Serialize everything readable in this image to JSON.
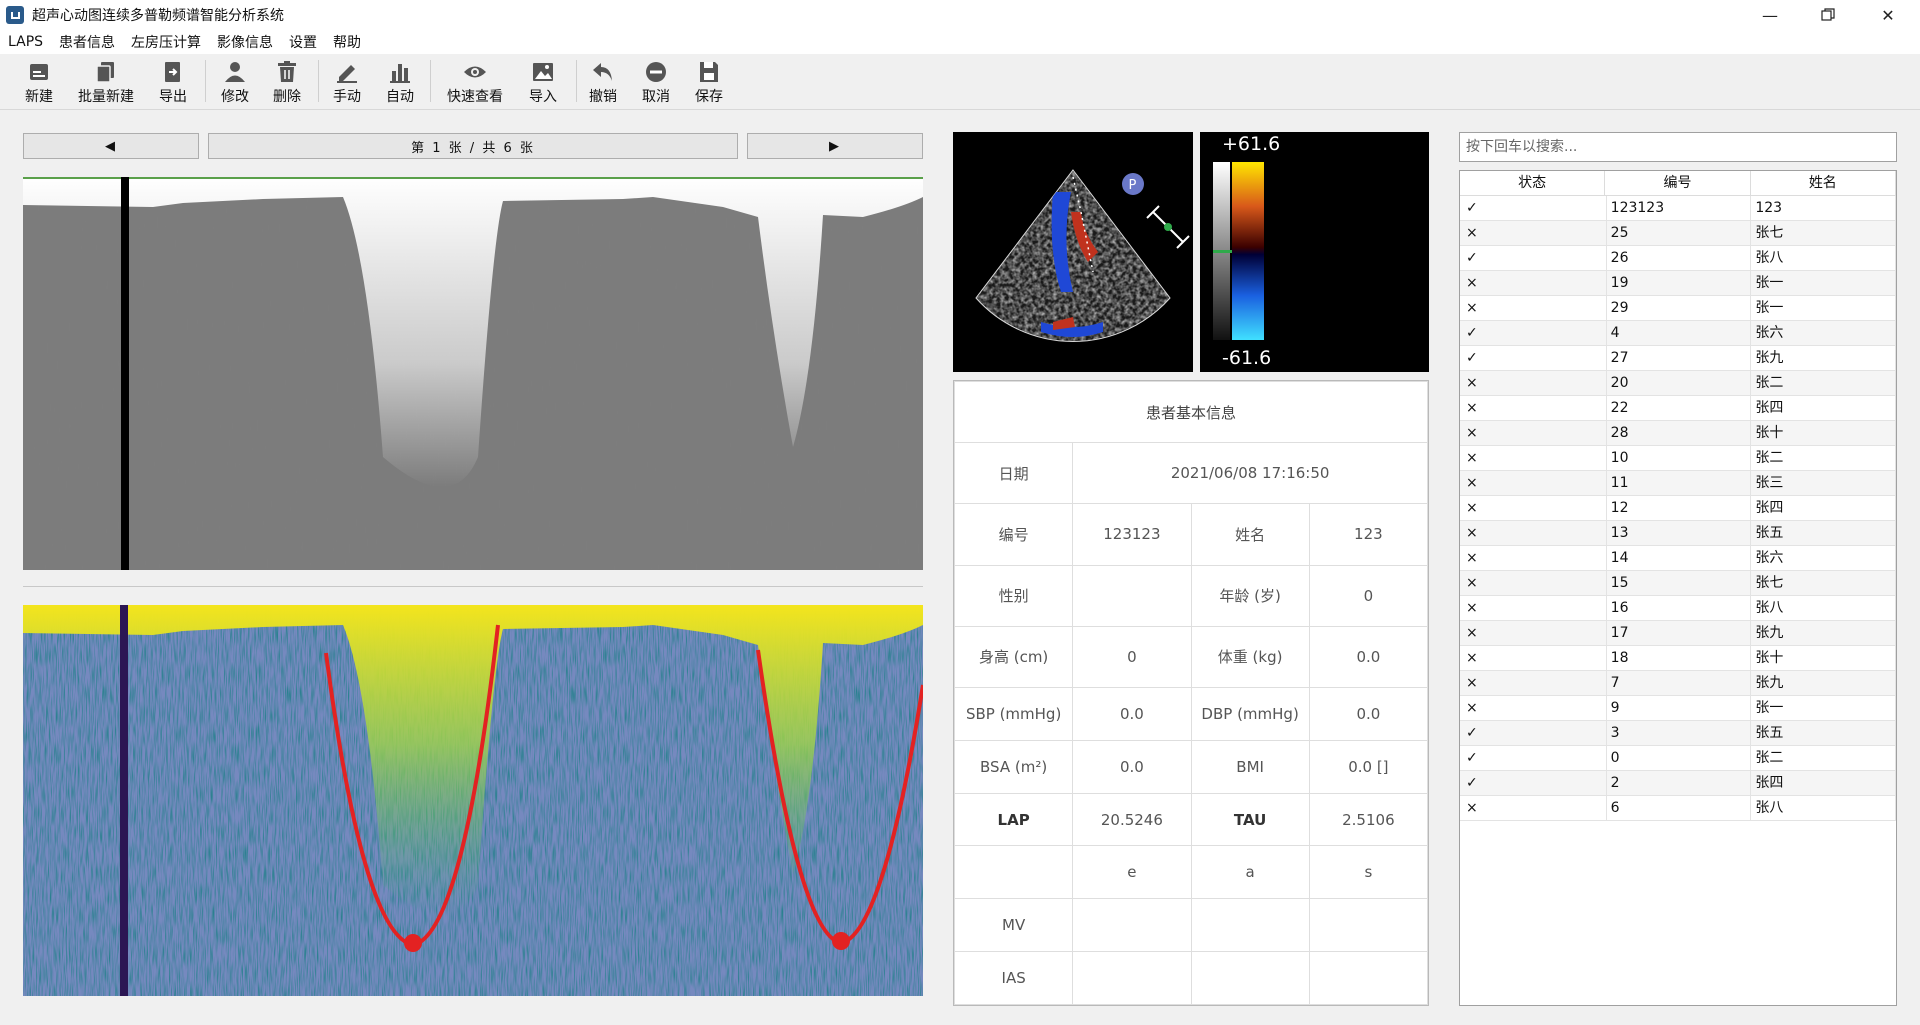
{
  "window": {
    "title": "超声心动图连续多普勒频谱智能分析系统"
  },
  "menu": [
    "LAPS",
    "患者信息",
    "左房压计算",
    "影像信息",
    "设置",
    "帮助"
  ],
  "toolbar": {
    "new": "新建",
    "batch_new": "批量新建",
    "export": "导出",
    "edit": "修改",
    "delete": "删除",
    "manual": "手动",
    "auto": "自动",
    "quick_view": "快速查看",
    "import": "导入",
    "undo": "撤销",
    "cancel": "取消",
    "save": "保存"
  },
  "nav": {
    "page_label": "第 1 张 / 共 6 张",
    "prev": "◀",
    "next": "▶"
  },
  "color_scale": {
    "max": "+61.6",
    "min": "-61.6"
  },
  "info": {
    "header": "患者基本信息",
    "date_label": "日期",
    "date_value": "2021/06/08 17:16:50",
    "id_label": "编号",
    "id_value": "123123",
    "name_label": "姓名",
    "name_value": "123",
    "sex_label": "性别",
    "sex_value": "",
    "age_label": "年龄 (岁)",
    "age_value": "0",
    "height_label": "身高 (cm)",
    "height_value": "0",
    "weight_label": "体重 (kg)",
    "weight_value": "0.0",
    "sbp_label": "SBP (mmHg)",
    "sbp_value": "0.0",
    "dbp_label": "DBP (mmHg)",
    "dbp_value": "0.0",
    "bsa_label": "BSA (m²)",
    "bsa_value": "0.0",
    "bmi_label": "BMI",
    "bmi_value": "0.0 []",
    "lap_label": "LAP",
    "lap_value": "20.5246",
    "tau_label": "TAU",
    "tau_value": "2.5106",
    "col_e": "e",
    "col_a": "a",
    "col_s": "s",
    "mv_label": "MV",
    "ias_label": "IAS"
  },
  "search": {
    "placeholder": "按下回车以搜索..."
  },
  "list": {
    "headers": [
      "状态",
      "编号",
      "姓名"
    ],
    "rows": [
      {
        "status": "✓",
        "id": "123123",
        "name": "123"
      },
      {
        "status": "×",
        "id": "25",
        "name": "张七"
      },
      {
        "status": "✓",
        "id": "26",
        "name": "张八"
      },
      {
        "status": "×",
        "id": "19",
        "name": "张一"
      },
      {
        "status": "×",
        "id": "29",
        "name": "张一"
      },
      {
        "status": "✓",
        "id": "4",
        "name": "张六"
      },
      {
        "status": "✓",
        "id": "27",
        "name": "张九"
      },
      {
        "status": "×",
        "id": "20",
        "name": "张二"
      },
      {
        "status": "×",
        "id": "22",
        "name": "张四"
      },
      {
        "status": "×",
        "id": "28",
        "name": "张十"
      },
      {
        "status": "×",
        "id": "10",
        "name": "张二"
      },
      {
        "status": "×",
        "id": "11",
        "name": "张三"
      },
      {
        "status": "×",
        "id": "12",
        "name": "张四"
      },
      {
        "status": "×",
        "id": "13",
        "name": "张五"
      },
      {
        "status": "×",
        "id": "14",
        "name": "张六"
      },
      {
        "status": "×",
        "id": "15",
        "name": "张七"
      },
      {
        "status": "×",
        "id": "16",
        "name": "张八"
      },
      {
        "status": "×",
        "id": "17",
        "name": "张九"
      },
      {
        "status": "×",
        "id": "18",
        "name": "张十"
      },
      {
        "status": "×",
        "id": "7",
        "name": "张九"
      },
      {
        "status": "×",
        "id": "9",
        "name": "张一"
      },
      {
        "status": "✓",
        "id": "3",
        "name": "张五"
      },
      {
        "status": "✓",
        "id": "0",
        "name": "张二"
      },
      {
        "status": "✓",
        "id": "2",
        "name": "张四"
      },
      {
        "status": "×",
        "id": "6",
        "name": "张八"
      }
    ]
  }
}
